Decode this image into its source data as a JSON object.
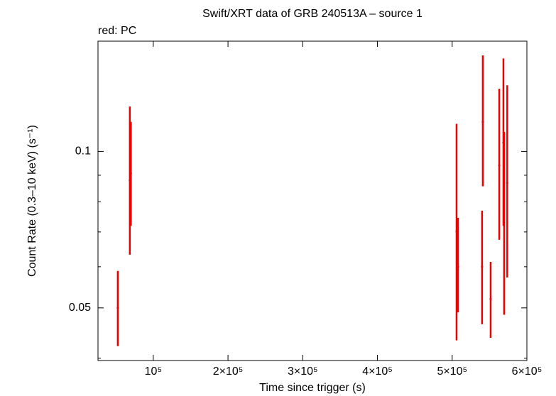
{
  "chart_data": {
    "type": "errorbar",
    "title": "Swift/XRT data of GRB 240513A – source 1",
    "subtitle": "red: PC",
    "x_label": "Time since trigger (s)",
    "y_label": "Count Rate (0.3–10 keV) (s⁻¹)",
    "y_log": true,
    "xlim": [
      26000,
      600000
    ],
    "ylim": [
      0.0396,
      0.163
    ],
    "xticks": [
      {
        "value": 100000,
        "label": "10⁵"
      },
      {
        "value": 200000,
        "label": "2×10⁵"
      },
      {
        "value": 300000,
        "label": "3×10⁵"
      },
      {
        "value": 400000,
        "label": "4×10⁵"
      },
      {
        "value": 500000,
        "label": "5×10⁵"
      },
      {
        "value": 600000,
        "label": "6×10⁵"
      }
    ],
    "yticks": [
      0.05,
      0.1
    ],
    "yminorticks": [
      0.04,
      0.06,
      0.07,
      0.08,
      0.09
    ],
    "series": [
      {
        "name": "PC",
        "color": "#ee0000",
        "x": [
          52500,
          68600,
          70000,
          505900,
          507800,
          541000,
          540000,
          551500,
          563000,
          568600,
          569500,
          573700
        ],
        "values": [
          0.05,
          0.088,
          0.0907,
          0.0702,
          0.06,
          0.114,
          0.06,
          0.052,
          0.094,
          0.104,
          0.073,
          0.087
        ],
        "lower": [
          0.0422,
          0.0633,
          0.0719,
          0.0433,
          0.049,
          0.0857,
          0.0465,
          0.0438,
          0.0676,
          0.0719,
          0.0485,
          0.0572
        ],
        "upper": [
          0.0589,
          0.122,
          0.114,
          0.113,
          0.0745,
          0.153,
          0.0769,
          0.0613,
          0.132,
          0.151,
          0.109,
          0.134
        ]
      }
    ]
  }
}
